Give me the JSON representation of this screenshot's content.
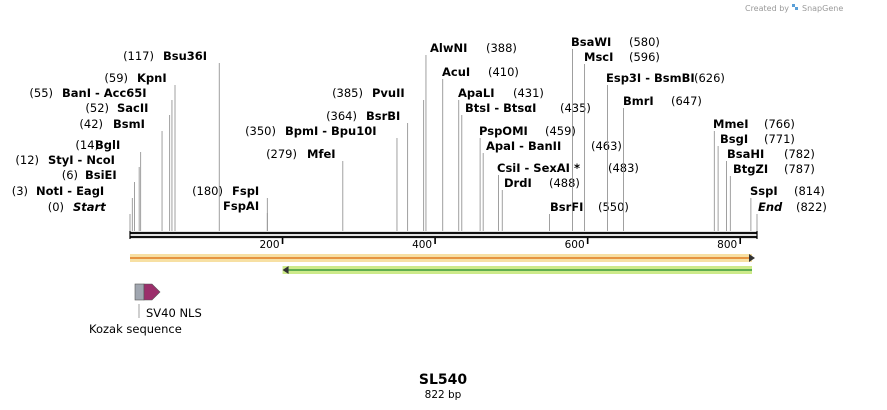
{
  "credit": {
    "prefix": "Created by",
    "app": "SnapGene"
  },
  "sequence": {
    "name": "SL540",
    "length": 822,
    "length_label": "822 bp"
  },
  "ruler": {
    "ticks": [
      200,
      400,
      600,
      800
    ]
  },
  "sites": [
    {
      "pos": "(0)",
      "name": "Start",
      "italic": true,
      "bp": 0
    },
    {
      "pos": "(3)",
      "name": "NotI  -  EagI",
      "bp": 3
    },
    {
      "pos": "(6)",
      "name": "BsiEI",
      "bp": 6
    },
    {
      "pos": "(12)",
      "name": "StyI  -  NcoI",
      "bp": 12
    },
    {
      "pos": "(14)",
      "name": "BglI",
      "bp": 14
    },
    {
      "pos": "(42)",
      "name": "BsmI",
      "bp": 42
    },
    {
      "pos": "(52)",
      "name": "SacII",
      "bp": 52
    },
    {
      "pos": "(55)",
      "name": "BanI  -  Acc65I",
      "bp": 55
    },
    {
      "pos": "(59)",
      "name": "KpnI",
      "bp": 59
    },
    {
      "pos": "(117)",
      "name": "Bsu36I",
      "bp": 117
    },
    {
      "pos": "",
      "name": "FspAI",
      "bp": 180
    },
    {
      "pos": "(180)",
      "name": "FspI",
      "bp": 180
    },
    {
      "pos": "(279)",
      "name": "MfeI",
      "bp": 279
    },
    {
      "pos": "(350)",
      "name": "BpmI  -  Bpu10I",
      "bp": 350
    },
    {
      "pos": "(364)",
      "name": "BsrBI",
      "bp": 364
    },
    {
      "pos": "(385)",
      "name": "PvuII",
      "bp": 385
    },
    {
      "pos": "(388)",
      "name": "AlwNI",
      "bp": 388
    },
    {
      "pos": "(410)",
      "name": "AcuI",
      "bp": 410
    },
    {
      "pos": "(431)",
      "name": "ApaLI",
      "bp": 431
    },
    {
      "pos": "(435)",
      "name": "BtsI  -  BtsαI",
      "bp": 435
    },
    {
      "pos": "(459)",
      "name": "PspOMI",
      "bp": 459
    },
    {
      "pos": "(463)",
      "name": "ApaI  -  BanII",
      "bp": 463
    },
    {
      "pos": "(483)",
      "name": "CsiI  -  SexAI *",
      "bp": 483
    },
    {
      "pos": "(488)",
      "name": "DrdI",
      "bp": 488
    },
    {
      "pos": "",
      "name": "BsrFI",
      "bp": 550
    },
    {
      "pos": "(550)",
      "name": "",
      "bp": 550
    },
    {
      "pos": "(580)",
      "name": "BsaWI",
      "bp": 580
    },
    {
      "pos": "(596)",
      "name": "MscI",
      "bp": 596
    },
    {
      "pos": "(626)",
      "name": "Esp3I  -  BsmBI",
      "bp": 626
    },
    {
      "pos": "(647)",
      "name": "BmrI",
      "bp": 647
    },
    {
      "pos": "(766)",
      "name": "MmeI",
      "bp": 766
    },
    {
      "pos": "(771)",
      "name": "BsgI",
      "bp": 771
    },
    {
      "pos": "(782)",
      "name": "BsaHI",
      "bp": 782
    },
    {
      "pos": "(787)",
      "name": "BtgZI",
      "bp": 787
    },
    {
      "pos": "(814)",
      "name": "SspI",
      "bp": 814
    },
    {
      "pos": "(822)",
      "name": "End",
      "italic": true,
      "bp": 822
    }
  ],
  "tracks": [
    {
      "name": "orange-orf",
      "color": "#e07a1f",
      "start": 0,
      "end": 822,
      "direction": "forward"
    },
    {
      "name": "green-orf",
      "color": "#3d9a3d",
      "start": 200,
      "end": 822,
      "direction": "reverse"
    }
  ],
  "features": [
    {
      "label": "Kozak sequence",
      "color": "#a0a6b0"
    },
    {
      "label": "SV40 NLS",
      "color": "#9b2f6b"
    }
  ],
  "colors": {
    "backbone": "#111111",
    "accent_app": "#5aa0d8"
  }
}
